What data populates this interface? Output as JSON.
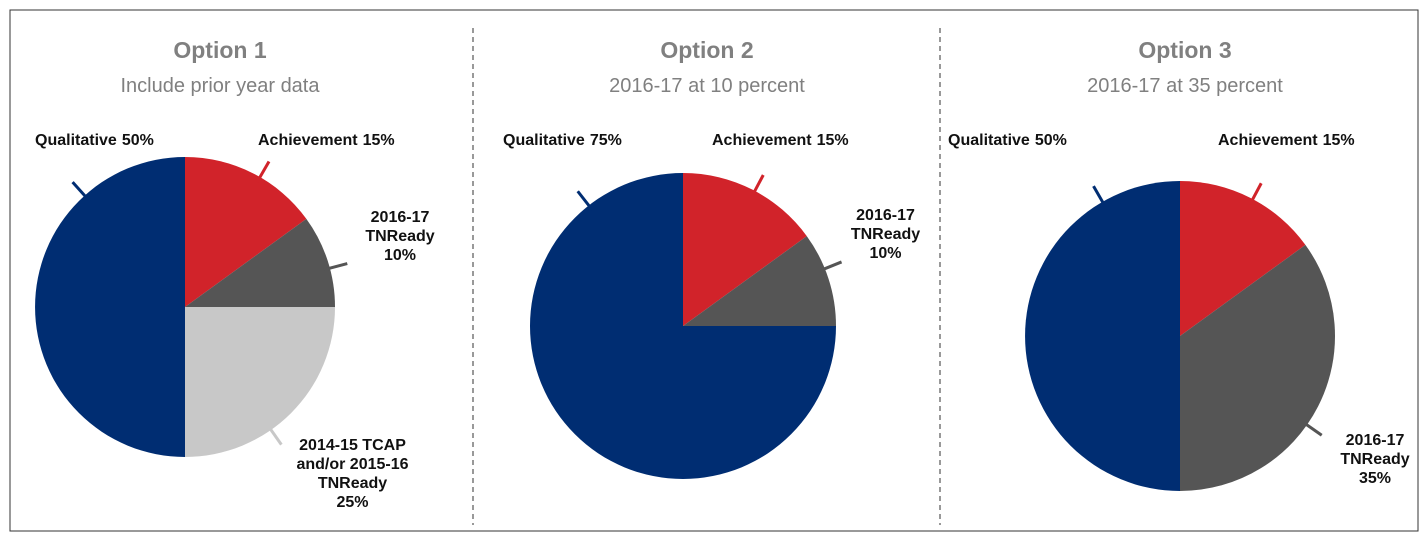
{
  "chart_data": [
    {
      "type": "pie",
      "title": "Option 1",
      "subtitle": "Include prior year data",
      "categories": [
        "Achievement",
        "2016-17 TNReady",
        "2014-15 TCAP and/or 2015-16 TNReady",
        "Qualitative"
      ],
      "values": [
        15,
        10,
        25,
        50
      ],
      "value_labels": [
        "15%",
        "10%",
        "25%",
        "50%"
      ],
      "colors": [
        "#d1232a",
        "#555555",
        "#c8c8c8",
        "#002d72"
      ]
    },
    {
      "type": "pie",
      "title": "Option 2",
      "subtitle": "2016-17 at 10 percent",
      "categories": [
        "Achievement",
        "2016-17 TNReady",
        "Qualitative"
      ],
      "values": [
        15,
        10,
        75
      ],
      "value_labels": [
        "15%",
        "10%",
        "75%"
      ],
      "colors": [
        "#d1232a",
        "#555555",
        "#002d72"
      ]
    },
    {
      "type": "pie",
      "title": "Option 3",
      "subtitle": "2016-17 at 35 percent",
      "categories": [
        "Achievement",
        "2016-17 TNReady",
        "Qualitative"
      ],
      "values": [
        15,
        35,
        50
      ],
      "value_labels": [
        "15%",
        "35%",
        "50%"
      ],
      "colors": [
        "#d1232a",
        "#555555",
        "#002d72"
      ]
    }
  ]
}
